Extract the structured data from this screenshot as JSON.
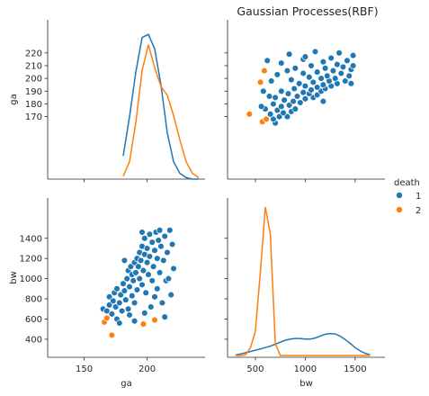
{
  "chart_data": {
    "type": "scatter",
    "title": "Gaussian Processes(RBF)",
    "variables": [
      "ga",
      "bw"
    ],
    "legend": {
      "title": "death",
      "placement": "right",
      "entries": [
        {
          "label": "1",
          "color": "#1f77b4"
        },
        {
          "label": "2",
          "color": "#ff7f0e"
        }
      ]
    },
    "axes": {
      "ga": {
        "label": "ga",
        "range": [
          121,
          246
        ],
        "ticks": [
          150,
          200
        ],
        "label_ticks": [
          170,
          180,
          190,
          200,
          210,
          220
        ],
        "diag_range": [
          161,
          226
        ]
      },
      "bw": {
        "label": "bw",
        "range": [
          221,
          1799
        ],
        "ticks": [
          500,
          1000,
          1500
        ],
        "label_ticks": [
          400,
          600,
          800,
          1000,
          1200,
          1400
        ],
        "diag_range": [
          375,
          1545
        ]
      }
    },
    "kde": {
      "ga": {
        "x": [
          181,
          186,
          191,
          196,
          201,
          206,
          211,
          216,
          221,
          226,
          231,
          236,
          241
        ],
        "series": [
          {
            "name": "1",
            "values": [
              0.16,
              0.43,
              0.74,
              0.98,
              1.0,
              0.9,
              0.65,
              0.32,
              0.12,
              0.04,
              0.01,
              0.0,
              0.0
            ]
          },
          {
            "name": "2",
            "values": [
              0.02,
              0.12,
              0.39,
              0.75,
              0.93,
              0.77,
              0.64,
              0.58,
              0.44,
              0.27,
              0.12,
              0.04,
              0.01
            ]
          }
        ]
      },
      "bw": {
        "x": [
          300,
          350,
          400,
          450,
          500,
          550,
          600,
          650,
          700,
          750,
          800,
          850,
          900,
          950,
          1000,
          1050,
          1100,
          1150,
          1200,
          1250,
          1300,
          1350,
          1400,
          1450,
          1500,
          1550,
          1600,
          1650
        ],
        "series": [
          {
            "name": "1",
            "values": [
              0.003,
              0.01,
              0.018,
              0.026,
              0.035,
              0.043,
              0.052,
              0.062,
              0.074,
              0.088,
              0.101,
              0.108,
              0.112,
              0.112,
              0.108,
              0.108,
              0.115,
              0.128,
              0.14,
              0.145,
              0.142,
              0.128,
              0.105,
              0.08,
              0.052,
              0.03,
              0.015,
              0.005
            ]
          },
          {
            "name": "2",
            "values": [
              0.0,
              0.0,
              0.004,
              0.05,
              0.16,
              0.55,
              0.98,
              0.8,
              0.08,
              0.0,
              0.0,
              0.0,
              0.0,
              0.0,
              0.0,
              0.0,
              0.0,
              0.0,
              0.0,
              0.0,
              0.0,
              0.0,
              0.0,
              0.0,
              0.0,
              0.0,
              0.0,
              0.0
            ]
          }
        ]
      }
    },
    "points": [
      {
        "ga": 165,
        "bw": 700,
        "death": "1"
      },
      {
        "ga": 168,
        "bw": 680,
        "death": "1"
      },
      {
        "ga": 170,
        "bw": 740,
        "death": "1"
      },
      {
        "ga": 170,
        "bw": 820,
        "death": "1"
      },
      {
        "ga": 172,
        "bw": 650,
        "death": "1"
      },
      {
        "ga": 173,
        "bw": 780,
        "death": "1"
      },
      {
        "ga": 174,
        "bw": 860,
        "death": "1"
      },
      {
        "ga": 175,
        "bw": 720,
        "death": "1"
      },
      {
        "ga": 176,
        "bw": 600,
        "death": "1"
      },
      {
        "ga": 176,
        "bw": 900,
        "death": "1"
      },
      {
        "ga": 178,
        "bw": 760,
        "death": "1"
      },
      {
        "ga": 178,
        "bw": 560,
        "death": "1"
      },
      {
        "ga": 179,
        "bw": 840,
        "death": "1"
      },
      {
        "ga": 180,
        "bw": 680,
        "death": "1"
      },
      {
        "ga": 181,
        "bw": 950,
        "death": "1"
      },
      {
        "ga": 182,
        "bw": 880,
        "death": "1"
      },
      {
        "ga": 183,
        "bw": 790,
        "death": "1"
      },
      {
        "ga": 184,
        "bw": 1000,
        "death": "1"
      },
      {
        "ga": 185,
        "bw": 700,
        "death": "1"
      },
      {
        "ga": 185,
        "bw": 1080,
        "death": "1"
      },
      {
        "ga": 186,
        "bw": 920,
        "death": "1"
      },
      {
        "ga": 187,
        "bw": 1120,
        "death": "1"
      },
      {
        "ga": 188,
        "bw": 830,
        "death": "1"
      },
      {
        "ga": 188,
        "bw": 1040,
        "death": "1"
      },
      {
        "ga": 189,
        "bw": 980,
        "death": "1"
      },
      {
        "ga": 190,
        "bw": 1160,
        "death": "1"
      },
      {
        "ga": 190,
        "bw": 760,
        "death": "1"
      },
      {
        "ga": 191,
        "bw": 1060,
        "death": "1"
      },
      {
        "ga": 192,
        "bw": 1200,
        "death": "1"
      },
      {
        "ga": 192,
        "bw": 890,
        "death": "1"
      },
      {
        "ga": 193,
        "bw": 1120,
        "death": "1"
      },
      {
        "ga": 194,
        "bw": 1000,
        "death": "1"
      },
      {
        "ga": 194,
        "bw": 1260,
        "death": "1"
      },
      {
        "ga": 195,
        "bw": 1180,
        "death": "1"
      },
      {
        "ga": 196,
        "bw": 940,
        "death": "1"
      },
      {
        "ga": 196,
        "bw": 1320,
        "death": "1"
      },
      {
        "ga": 197,
        "bw": 1080,
        "death": "1"
      },
      {
        "ga": 198,
        "bw": 1240,
        "death": "1"
      },
      {
        "ga": 198,
        "bw": 1400,
        "death": "1"
      },
      {
        "ga": 199,
        "bw": 860,
        "death": "1"
      },
      {
        "ga": 200,
        "bw": 1160,
        "death": "1"
      },
      {
        "ga": 200,
        "bw": 1300,
        "death": "1"
      },
      {
        "ga": 201,
        "bw": 1040,
        "death": "1"
      },
      {
        "ga": 202,
        "bw": 1440,
        "death": "1"
      },
      {
        "ga": 202,
        "bw": 1220,
        "death": "1"
      },
      {
        "ga": 203,
        "bw": 720,
        "death": "1"
      },
      {
        "ga": 204,
        "bw": 1360,
        "death": "1"
      },
      {
        "ga": 204,
        "bw": 980,
        "death": "1"
      },
      {
        "ga": 205,
        "bw": 1120,
        "death": "1"
      },
      {
        "ga": 206,
        "bw": 1280,
        "death": "1"
      },
      {
        "ga": 207,
        "bw": 1460,
        "death": "1"
      },
      {
        "ga": 208,
        "bw": 900,
        "death": "1"
      },
      {
        "ga": 208,
        "bw": 1200,
        "death": "1"
      },
      {
        "ga": 209,
        "bw": 1380,
        "death": "1"
      },
      {
        "ga": 210,
        "bw": 1060,
        "death": "1"
      },
      {
        "ga": 211,
        "bw": 1320,
        "death": "1"
      },
      {
        "ga": 212,
        "bw": 760,
        "death": "1"
      },
      {
        "ga": 213,
        "bw": 1180,
        "death": "1"
      },
      {
        "ga": 214,
        "bw": 1420,
        "death": "1"
      },
      {
        "ga": 215,
        "bw": 980,
        "death": "1"
      },
      {
        "ga": 216,
        "bw": 1260,
        "death": "1"
      },
      {
        "ga": 218,
        "bw": 1480,
        "death": "1"
      },
      {
        "ga": 219,
        "bw": 840,
        "death": "1"
      },
      {
        "ga": 220,
        "bw": 1340,
        "death": "1"
      },
      {
        "ga": 221,
        "bw": 1100,
        "death": "1"
      },
      {
        "ga": 182,
        "bw": 1180,
        "death": "1"
      },
      {
        "ga": 186,
        "bw": 640,
        "death": "1"
      },
      {
        "ga": 198,
        "bw": 660,
        "death": "1"
      },
      {
        "ga": 210,
        "bw": 1480,
        "death": "1"
      },
      {
        "ga": 214,
        "bw": 620,
        "death": "1"
      },
      {
        "ga": 190,
        "bw": 580,
        "death": "1"
      },
      {
        "ga": 206,
        "bw": 820,
        "death": "1"
      },
      {
        "ga": 196,
        "bw": 1460,
        "death": "1"
      },
      {
        "ga": 217,
        "bw": 1000,
        "death": "1"
      },
      {
        "ga": 172,
        "bw": 440,
        "death": "2"
      },
      {
        "ga": 166,
        "bw": 570,
        "death": "2"
      },
      {
        "ga": 168,
        "bw": 610,
        "death": "2"
      },
      {
        "ga": 197,
        "bw": 550,
        "death": "2"
      },
      {
        "ga": 206,
        "bw": 590,
        "death": "2"
      }
    ]
  }
}
